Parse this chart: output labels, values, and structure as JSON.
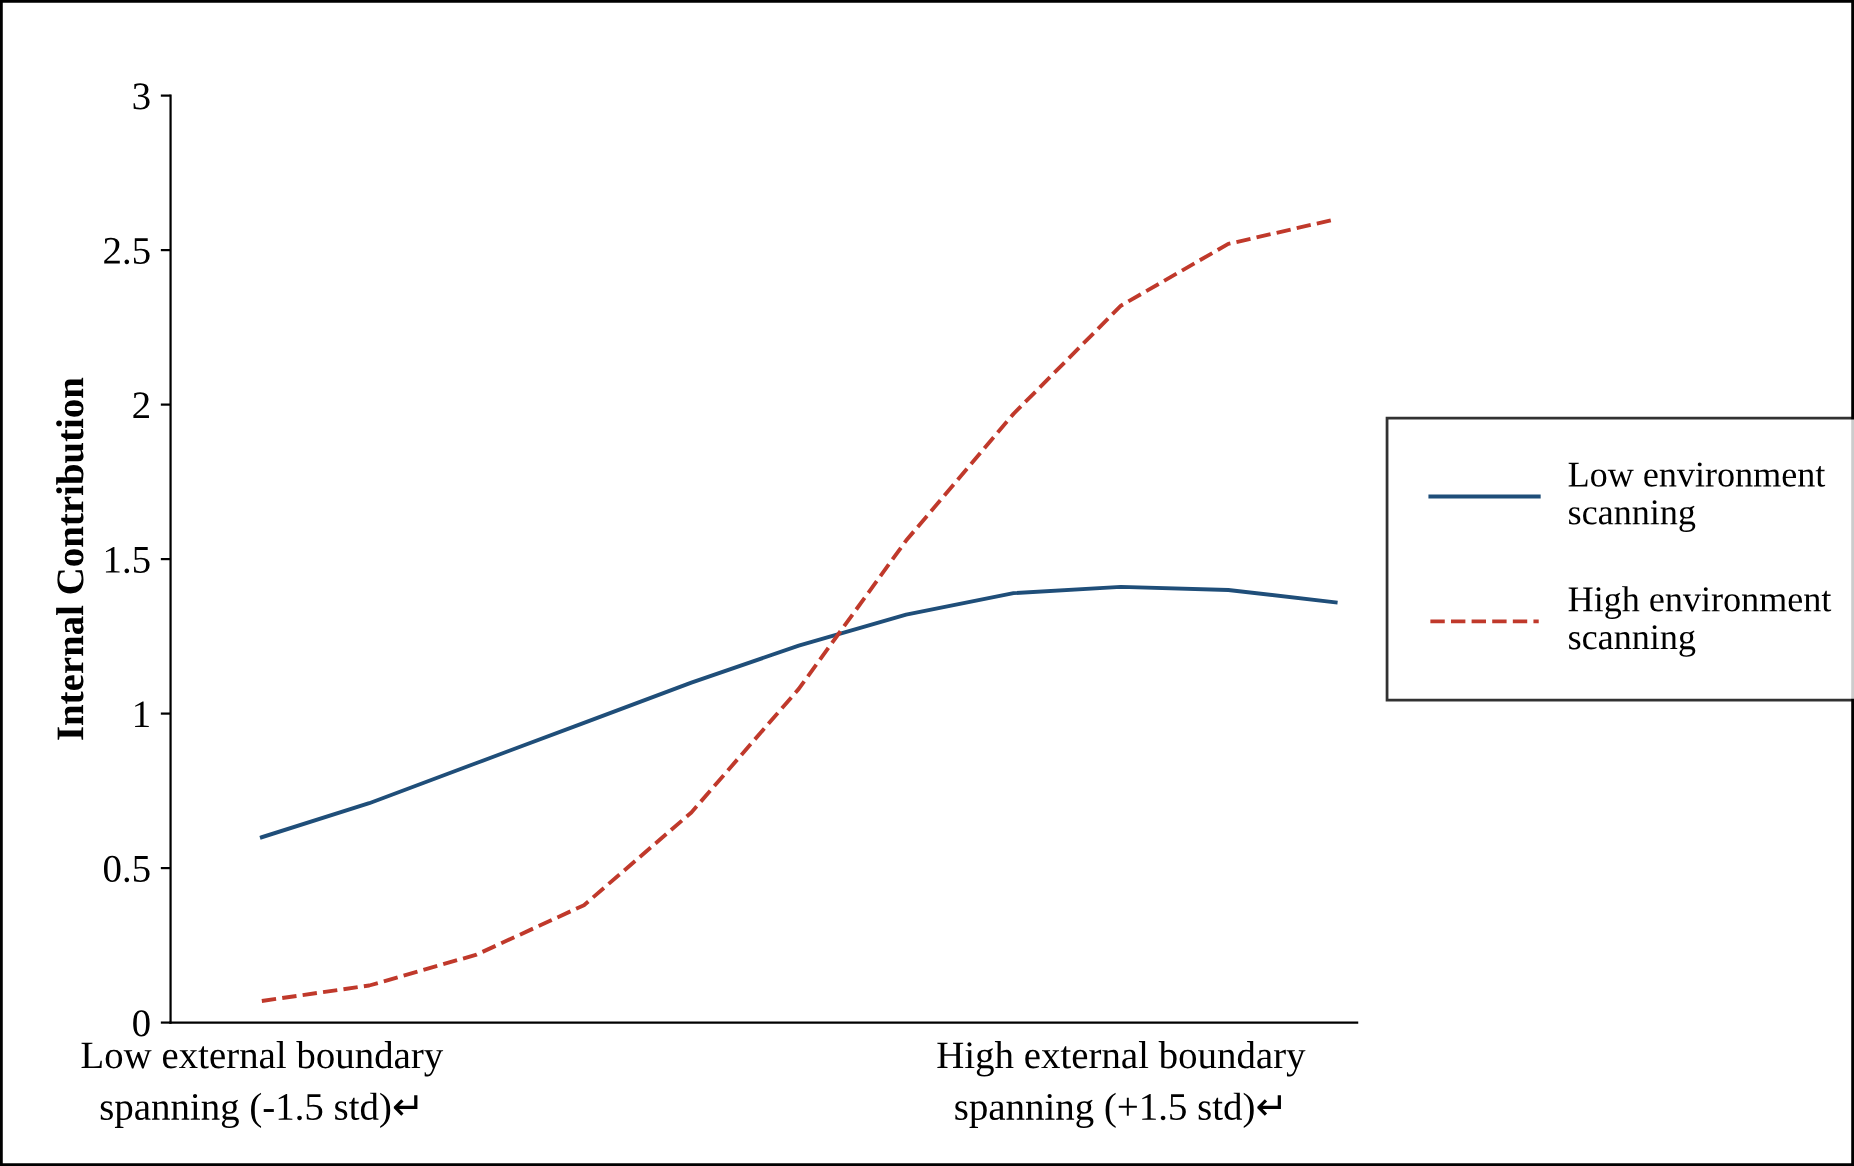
{
  "chart_data": {
    "type": "line",
    "ylabel": "Internal Contribution",
    "categories": [
      "Low external boundary spanning (-1.5 std)↵",
      null,
      null,
      null,
      null,
      null,
      null,
      null,
      "High external boundary spanning (+1.5 std)↵",
      null,
      null
    ],
    "series": [
      {
        "name": "Low environment scanning",
        "color": "#1f4e79",
        "line_style": "solid",
        "values": [
          0.6,
          0.71,
          0.84,
          0.97,
          1.1,
          1.22,
          1.32,
          1.39,
          1.41,
          1.4,
          1.36
        ]
      },
      {
        "name": "High environment scanning",
        "color": "#c0392b",
        "line_style": "dashed",
        "values": [
          0.07,
          0.12,
          0.22,
          0.38,
          0.68,
          1.08,
          1.56,
          1.97,
          2.32,
          2.52,
          2.6
        ]
      }
    ],
    "ylim": [
      0,
      3
    ],
    "yticks": [
      0,
      0.5,
      1,
      1.5,
      2,
      2.5,
      3
    ],
    "grid": false,
    "legend": "right",
    "marker": "none"
  }
}
